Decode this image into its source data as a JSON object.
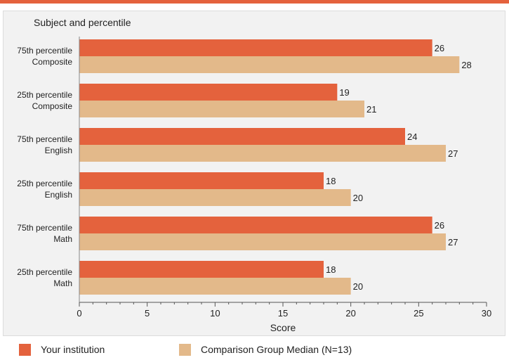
{
  "colors": {
    "accent": "#e4623d",
    "series1": "#e4623d",
    "series2": "#e3b98a",
    "panel": "#f2f2f2"
  },
  "legend": {
    "items": [
      {
        "label": "Your institution",
        "color": "#e4623d"
      },
      {
        "label": "Comparison Group Median (N=13)",
        "color": "#e3b98a"
      }
    ]
  },
  "chart_data": {
    "type": "bar",
    "orientation": "horizontal",
    "title": "",
    "category_axis_title": "Subject and percentile",
    "xlabel": "Score",
    "xlim": [
      0,
      30
    ],
    "xticks": [
      0,
      5,
      10,
      15,
      20,
      25,
      30
    ],
    "grid": false,
    "legend_position": "bottom",
    "categories": [
      [
        "75th percentile",
        "Composite"
      ],
      [
        "25th percentile",
        "Composite"
      ],
      [
        "75th percentile",
        "English"
      ],
      [
        "25th percentile",
        "English"
      ],
      [
        "75th percentile",
        "Math"
      ],
      [
        "25th percentile",
        "Math"
      ]
    ],
    "series": [
      {
        "name": "Your institution",
        "values": [
          26,
          19,
          24,
          18,
          26,
          18
        ]
      },
      {
        "name": "Comparison Group Median (N=13)",
        "values": [
          28,
          21,
          27,
          20,
          27,
          20
        ]
      }
    ]
  }
}
